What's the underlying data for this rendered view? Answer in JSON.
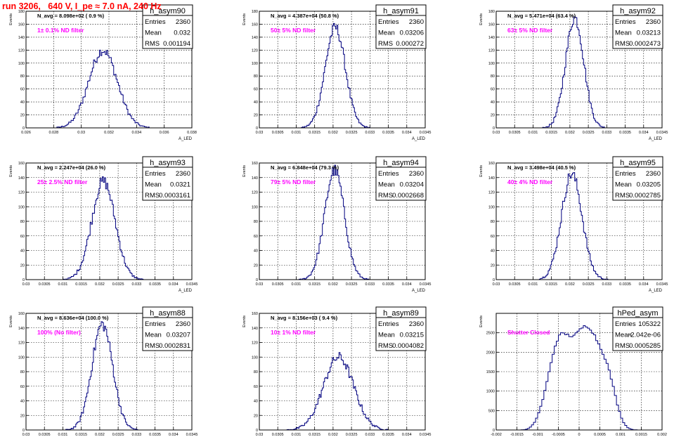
{
  "page_title": "run 3206,   640 V, I_pe ≈ 7.0 nA, 240 Hz",
  "colors": {
    "hist": "#00007f",
    "annotation": "#ff00ff",
    "title": "#ff0000",
    "frame": "#000000"
  },
  "chart_data": [
    {
      "type": "bar",
      "name": "h_asym90",
      "navg": "N_avg = 8.098e+02 ( 0.9 %)",
      "filter": "1± 0.1% ND filter",
      "stats": {
        "entries": "2360",
        "mean": "0.032",
        "rms": "0.001194"
      },
      "ylabel": "Events",
      "xlabel": "A_LED",
      "xlim": [
        0.0255,
        0.0395
      ],
      "ylim": [
        0,
        180
      ],
      "xticks": [
        "0.026",
        "0.028",
        "0.03",
        "0.032",
        "0.034",
        "0.036",
        "0.038"
      ],
      "yticks": [
        "0",
        "20",
        "40",
        "60",
        "80",
        "100",
        "120",
        "140",
        "160",
        "180"
      ],
      "mean": 0.032,
      "sigma": 0.0012,
      "peak": 120,
      "binwidth": 0.0001
    },
    {
      "type": "bar",
      "name": "h_asym91",
      "navg": "N_avg = 4.387e+04 (50.8 %)",
      "filter": "50± 5% ND filter",
      "stats": {
        "entries": "2360",
        "mean": "0.03206",
        "rms": "0.000272"
      },
      "ylabel": "Events",
      "xlabel": "A_LED",
      "xlim": [
        0.03,
        0.0345
      ],
      "ylim": [
        0,
        180
      ],
      "xticks": [
        "0.03",
        "0.0305",
        "0.031",
        "0.0315",
        "0.032",
        "0.0325",
        "0.033",
        "0.0335",
        "0.034",
        "0.0345"
      ],
      "yticks": [
        "0",
        "20",
        "40",
        "60",
        "80",
        "100",
        "120",
        "140",
        "160",
        "180"
      ],
      "mean": 0.03206,
      "sigma": 0.000272,
      "peak": 155,
      "binwidth": 3e-05
    },
    {
      "type": "bar",
      "name": "h_asym92",
      "navg": "N_avg = 5.471e+04 (63.4 %)",
      "filter": "63± 5% ND filter",
      "stats": {
        "entries": "2360",
        "mean": "0.03213",
        "rms": "0.0002473"
      },
      "ylabel": "Events",
      "xlabel": "A_LED",
      "xlim": [
        0.03,
        0.0345
      ],
      "ylim": [
        0,
        180
      ],
      "xticks": [
        "0.03",
        "0.0305",
        "0.031",
        "0.0315",
        "0.032",
        "0.0325",
        "0.033",
        "0.0335",
        "0.034",
        "0.0345"
      ],
      "yticks": [
        "0",
        "20",
        "40",
        "60",
        "80",
        "100",
        "120",
        "140",
        "160",
        "180"
      ],
      "mean": 0.03213,
      "sigma": 0.0002473,
      "peak": 170,
      "binwidth": 3e-05
    },
    {
      "type": "bar",
      "name": "h_asym93",
      "navg": "N_avg = 2.247e+04 (26.0 %)",
      "filter": "25± 2.5% ND filter",
      "stats": {
        "entries": "2360",
        "mean": "0.0321",
        "rms": "0.0003161"
      },
      "ylabel": "Events",
      "xlabel": "A_LED",
      "xlim": [
        0.03,
        0.0345
      ],
      "ylim": [
        0,
        160
      ],
      "xticks": [
        "0.03",
        "0.0305",
        "0.031",
        "0.0315",
        "0.032",
        "0.0325",
        "0.033",
        "0.0335",
        "0.034",
        "0.0345"
      ],
      "yticks": [
        "0",
        "20",
        "40",
        "60",
        "80",
        "100",
        "120",
        "140",
        "160"
      ],
      "mean": 0.0321,
      "sigma": 0.000316,
      "peak": 135,
      "binwidth": 3e-05
    },
    {
      "type": "bar",
      "name": "h_asym94",
      "navg": "N_avg = 6.848e+04 (79.3 %)",
      "filter": "79± 5% ND filter",
      "stats": {
        "entries": "2360",
        "mean": "0.03204",
        "rms": "0.0002668"
      },
      "ylabel": "Events",
      "xlabel": "A_LED",
      "xlim": [
        0.03,
        0.0345
      ],
      "ylim": [
        0,
        160
      ],
      "xticks": [
        "0.03",
        "0.0305",
        "0.031",
        "0.0315",
        "0.032",
        "0.0325",
        "0.033",
        "0.0335",
        "0.034",
        "0.0345"
      ],
      "yticks": [
        "0",
        "20",
        "40",
        "60",
        "80",
        "100",
        "120",
        "140",
        "160"
      ],
      "mean": 0.03204,
      "sigma": 0.000267,
      "peak": 150,
      "binwidth": 3e-05
    },
    {
      "type": "bar",
      "name": "h_asym95",
      "navg": "N_avg = 3.498e+04 (40.5 %)",
      "filter": "40± 4% ND filter",
      "stats": {
        "entries": "2360",
        "mean": "0.03205",
        "rms": "0.0002785"
      },
      "ylabel": "Events",
      "xlabel": "A_LED",
      "xlim": [
        0.03,
        0.0345
      ],
      "ylim": [
        0,
        160
      ],
      "xticks": [
        "0.03",
        "0.0305",
        "0.031",
        "0.0315",
        "0.032",
        "0.0325",
        "0.033",
        "0.0335",
        "0.034",
        "0.0345"
      ],
      "yticks": [
        "0",
        "20",
        "40",
        "60",
        "80",
        "100",
        "120",
        "140",
        "160"
      ],
      "mean": 0.03205,
      "sigma": 0.000279,
      "peak": 145,
      "binwidth": 3e-05
    },
    {
      "type": "bar",
      "name": "h_asym88",
      "navg": "N_avg = 8.636e+04 (100.0 %)",
      "filter": "100% (No filter)",
      "stats": {
        "entries": "2360",
        "mean": "0.03207",
        "rms": "0.0002831"
      },
      "ylabel": "Events",
      "xlabel": "A_LED",
      "xlim": [
        0.03,
        0.0345
      ],
      "ylim": [
        0,
        160
      ],
      "xticks": [
        "0.03",
        "0.0305",
        "0.031",
        "0.0315",
        "0.032",
        "0.0325",
        "0.033",
        "0.0335",
        "0.034",
        "0.0345"
      ],
      "yticks": [
        "0",
        "20",
        "40",
        "60",
        "80",
        "100",
        "120",
        "140",
        "160"
      ],
      "mean": 0.03207,
      "sigma": 0.000283,
      "peak": 145,
      "binwidth": 3e-05
    },
    {
      "type": "bar",
      "name": "h_asym89",
      "navg": "N_avg = 8.156e+03 ( 9.4 %)",
      "filter": "10± 1% ND filter",
      "stats": {
        "entries": "2360",
        "mean": "0.03215",
        "rms": "0.0004082"
      },
      "ylabel": "Events",
      "xlabel": "A_LED",
      "xlim": [
        0.03,
        0.0345
      ],
      "ylim": [
        0,
        160
      ],
      "xticks": [
        "0.03",
        "0.0305",
        "0.031",
        "0.0315",
        "0.032",
        "0.0325",
        "0.033",
        "0.0335",
        "0.034",
        "0.0345"
      ],
      "yticks": [
        "0",
        "20",
        "40",
        "60",
        "80",
        "100",
        "120",
        "140",
        "160"
      ],
      "mean": 0.03215,
      "sigma": 0.000408,
      "peak": 100,
      "binwidth": 3e-05
    },
    {
      "type": "bar",
      "name": "hPed_asym",
      "navg": "",
      "filter": "Shutter Closed",
      "stats": {
        "entries": "105322",
        "mean": "-2.042e-06",
        "rms": "0.0005285"
      },
      "ylabel": "Events",
      "xlabel": "A_LED",
      "xlim": [
        -0.002,
        0.002
      ],
      "ylim": [
        0,
        3000
      ],
      "xticks": [
        "-0.002",
        "-0.0015",
        "-0.001",
        "-0.0005",
        "0",
        "0.0005",
        "0.001",
        "0.0015",
        "0.002"
      ],
      "yticks": [
        "0",
        "500",
        "1000",
        "1500",
        "2000",
        "2500"
      ],
      "mean": 0.0,
      "sigma": 0.00053,
      "peak": 2550,
      "binwidth": 5e-05,
      "flat": true
    }
  ]
}
